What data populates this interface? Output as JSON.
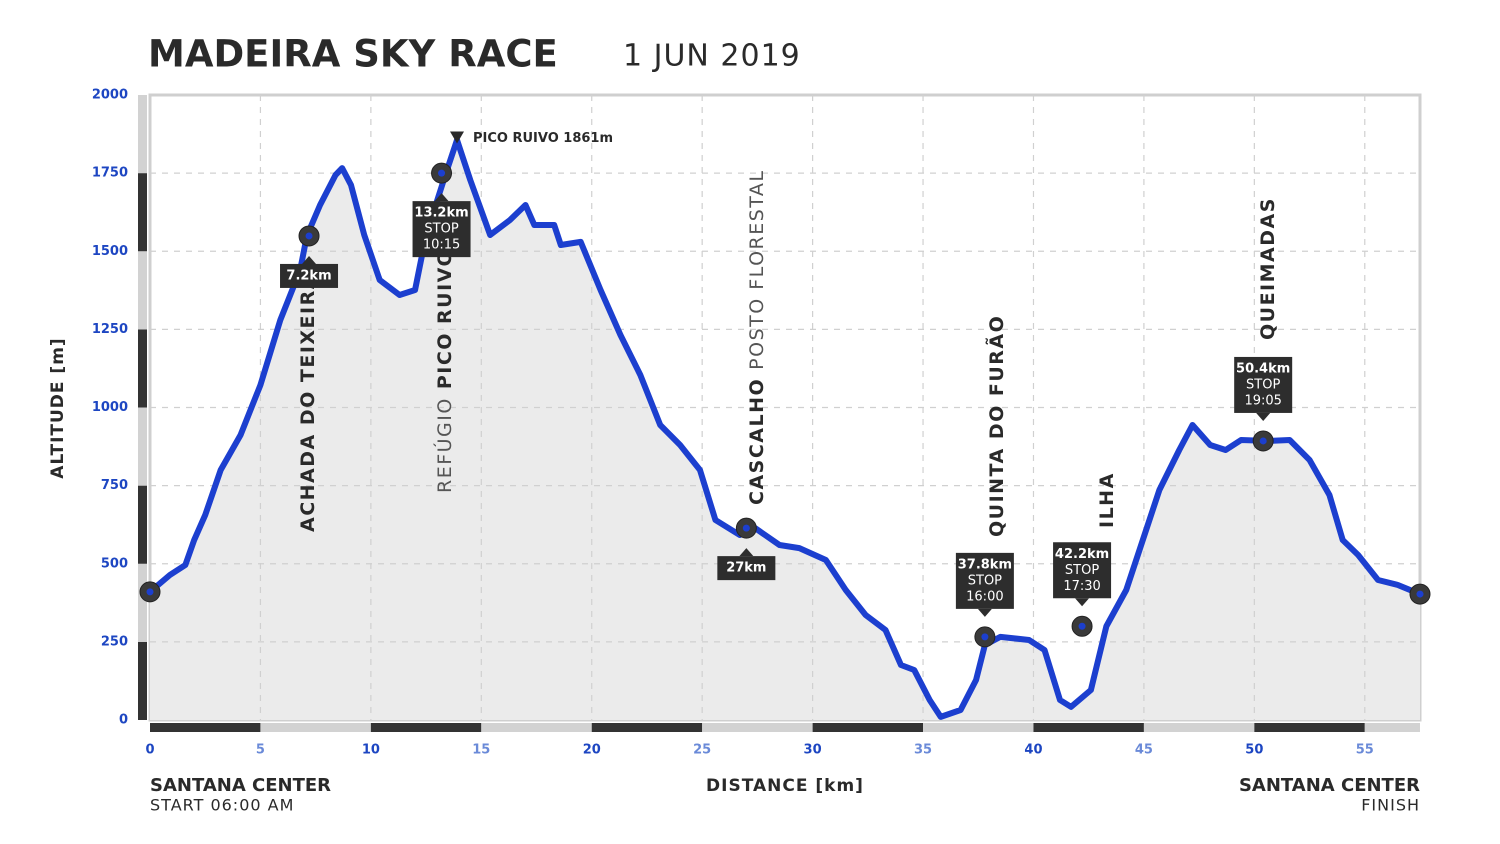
{
  "chart_data": {
    "type": "area",
    "title": "MADEIRA SKY RACE",
    "subtitle": "1 JUN 2019",
    "x_label": "DISTANCE [km]",
    "y_label": "ALTITUDE [m]",
    "color": "#1c3fcf",
    "fill": "#ebebeb",
    "grid": true,
    "xlim": [
      0,
      57.5
    ],
    "ylim": [
      0,
      2000
    ],
    "xticks": [
      0,
      5,
      10,
      15,
      20,
      25,
      30,
      35,
      40,
      45,
      50,
      55
    ],
    "yticks": [
      0,
      250,
      500,
      750,
      1000,
      1250,
      1500,
      1750,
      2000
    ],
    "x": [
      0,
      0.9,
      1.6,
      2.0,
      2.5,
      3.2,
      4.1,
      5.0,
      5.9,
      6.8,
      7.1,
      7.7,
      8.4,
      8.7,
      9.1,
      9.7,
      10.4,
      11.3,
      12.0,
      12.5,
      13.4,
      13.9,
      14.5,
      15.4,
      16.3,
      17.0,
      17.4,
      18.3,
      18.6,
      19.5,
      20.4,
      21.3,
      22.2,
      23.1,
      24.0,
      24.9,
      25.6,
      26.7,
      27.4,
      28.5,
      29.4,
      30.6,
      31.5,
      32.4,
      33.3,
      34.0,
      34.6,
      35.3,
      35.8,
      36.7,
      37.4,
      37.8,
      38.5,
      39.8,
      40.5,
      41.2,
      41.7,
      42.6,
      43.3,
      44.2,
      45.1,
      45.7,
      46.6,
      47.2,
      48.0,
      48.7,
      49.4,
      50.6,
      51.6,
      52.5,
      53.4,
      54.0,
      54.7,
      55.6,
      56.5,
      57.5
    ],
    "values": [
      410,
      464,
      496,
      576,
      656,
      800,
      912,
      1072,
      1280,
      1440,
      1549,
      1648,
      1744,
      1766,
      1712,
      1552,
      1408,
      1360,
      1376,
      1552,
      1750,
      1856,
      1728,
      1552,
      1600,
      1648,
      1584,
      1584,
      1520,
      1530,
      1376,
      1232,
      1104,
      944,
      880,
      800,
      640,
      592,
      614,
      560,
      550,
      512,
      416,
      336,
      288,
      176,
      160,
      64,
      10,
      32,
      128,
      240,
      266,
      256,
      224,
      64,
      42,
      96,
      300,
      416,
      608,
      736,
      864,
      944,
      880,
      864,
      896,
      893,
      896,
      832,
      720,
      576,
      528,
      448,
      432,
      403
    ],
    "peak": {
      "x": 13.9,
      "y": 1861,
      "label": "PICO RUIVO 1861m"
    },
    "markers": [
      {
        "x": 7.2,
        "y": 1549,
        "label": "7.2km"
      },
      {
        "x": 13.2,
        "y": 1750,
        "label": "13.2km",
        "stop": "STOP",
        "time": "10:15"
      },
      {
        "x": 27,
        "y": 614,
        "label": "27km"
      },
      {
        "x": 37.8,
        "y": 266,
        "label": "37.8km",
        "stop": "STOP",
        "time": "16:00"
      },
      {
        "x": 42.2,
        "y": 300,
        "label": "42.2km",
        "stop": "STOP",
        "time": "17:30"
      },
      {
        "x": 50.4,
        "y": 893,
        "label": "50.4km",
        "stop": "STOP",
        "time": "19:05"
      }
    ],
    "places": [
      {
        "parts": [
          {
            "text": "ACHADA DO TEIXEIRA",
            "bold": true
          }
        ]
      },
      {
        "parts": [
          {
            "text": "REFÚGIO",
            "bold": false
          },
          {
            "text": "PICO RUIVO",
            "bold": true
          }
        ]
      },
      {
        "parts": [
          {
            "text": "CASCALHO",
            "bold": true
          },
          {
            "text": "POSTO FLORESTAL",
            "bold": false
          }
        ]
      },
      {
        "parts": [
          {
            "text": "QUINTA DO FURÃO",
            "bold": true
          }
        ]
      },
      {
        "parts": [
          {
            "text": "ILHA",
            "bold": true
          }
        ]
      },
      {
        "parts": [
          {
            "text": "QUEIMADAS",
            "bold": true
          }
        ]
      }
    ],
    "start": {
      "name": "SANTANA CENTER",
      "note": "START 06:00 AM"
    },
    "finish": {
      "name": "SANTANA CENTER",
      "note": "FINISH"
    }
  }
}
